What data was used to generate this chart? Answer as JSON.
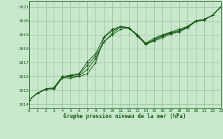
{
  "xlabel": "Graphe pression niveau de la mer (hPa)",
  "x_ticks": [
    0,
    1,
    2,
    3,
    4,
    5,
    6,
    7,
    8,
    9,
    10,
    11,
    12,
    13,
    14,
    15,
    16,
    17,
    18,
    19,
    20,
    21,
    22,
    23
  ],
  "y_ticks": [
    1014,
    1015,
    1016,
    1017,
    1018,
    1019,
    1020,
    1021
  ],
  "ylim": [
    1013.7,
    1021.4
  ],
  "xlim": [
    0,
    23
  ],
  "background_color": "#c8e8cc",
  "grid_color": "#99bb99",
  "line_color": "#1a5c1a",
  "series": [
    [
      1014.3,
      1014.8,
      1015.1,
      1015.1,
      1015.9,
      1015.9,
      1016.0,
      1016.2,
      1017.0,
      1018.8,
      1019.3,
      1019.55,
      1019.45,
      1018.95,
      1018.3,
      1018.55,
      1018.8,
      1019.05,
      1019.2,
      1019.5,
      1019.95,
      1020.05,
      1020.4,
      1021.0
    ],
    [
      1014.3,
      1014.8,
      1015.1,
      1015.15,
      1015.9,
      1016.0,
      1016.05,
      1016.5,
      1017.3,
      1018.5,
      1019.0,
      1019.4,
      1019.5,
      1018.9,
      1018.3,
      1018.6,
      1018.9,
      1019.1,
      1019.25,
      1019.55,
      1020.0,
      1020.1,
      1020.4,
      1021.0
    ],
    [
      1014.3,
      1014.8,
      1015.1,
      1015.2,
      1016.0,
      1016.05,
      1016.15,
      1016.8,
      1017.5,
      1018.5,
      1019.1,
      1019.6,
      1019.5,
      1019.0,
      1018.35,
      1018.65,
      1018.95,
      1019.15,
      1019.3,
      1019.55,
      1020.0,
      1020.1,
      1020.4,
      1021.0
    ],
    [
      1014.3,
      1014.8,
      1015.05,
      1015.2,
      1016.0,
      1016.1,
      1016.2,
      1017.05,
      1017.65,
      1018.85,
      1019.4,
      1019.6,
      1019.5,
      1019.0,
      1018.4,
      1018.75,
      1019.0,
      1019.2,
      1019.4,
      1019.6,
      1020.0,
      1020.1,
      1020.4,
      1021.0
    ]
  ]
}
